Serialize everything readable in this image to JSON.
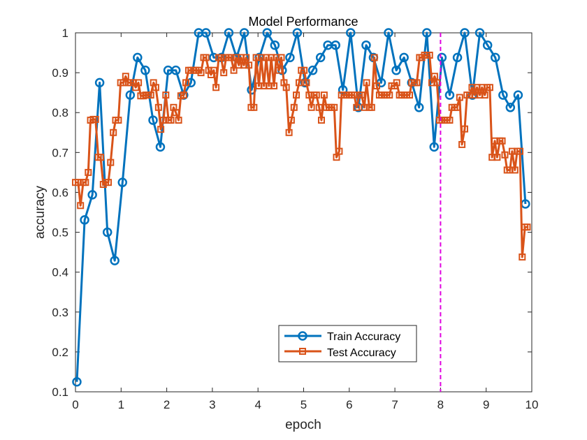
{
  "chart_data": {
    "type": "line",
    "title": "Model Performance",
    "xlabel": "epoch",
    "ylabel": "accuracy",
    "xlim": [
      0,
      10
    ],
    "ylim": [
      0.1,
      1
    ],
    "xticks": [
      "0",
      "1",
      "2",
      "3",
      "4",
      "5",
      "6",
      "7",
      "8",
      "9",
      "10"
    ],
    "yticks": [
      "0.1",
      "0.2",
      "0.3",
      "0.4",
      "0.5",
      "0.6",
      "0.7",
      "0.8",
      "0.9",
      "1"
    ],
    "grid": false,
    "legend_position": "bottom-center",
    "vline": {
      "x": 8,
      "color": "#e000e0",
      "style": "dashed"
    },
    "series": [
      {
        "name": "Train Accuracy",
        "color": "#0072bd",
        "marker": "circle",
        "points": [
          [
            0.03,
            0.125
          ],
          [
            0.2,
            0.531
          ],
          [
            0.37,
            0.594
          ],
          [
            0.53,
            0.875
          ],
          [
            0.7,
            0.5
          ],
          [
            0.86,
            0.429
          ],
          [
            1.03,
            0.625
          ],
          [
            1.2,
            0.844
          ],
          [
            1.36,
            0.938
          ],
          [
            1.53,
            0.906
          ],
          [
            1.7,
            0.781
          ],
          [
            1.86,
            0.714
          ],
          [
            2.03,
            0.906
          ],
          [
            2.2,
            0.906
          ],
          [
            2.37,
            0.844
          ],
          [
            2.53,
            0.875
          ],
          [
            2.7,
            1.0
          ],
          [
            2.86,
            1.0
          ],
          [
            3.03,
            0.938
          ],
          [
            3.2,
            0.938
          ],
          [
            3.36,
            1.0
          ],
          [
            3.53,
            0.938
          ],
          [
            3.7,
            1.0
          ],
          [
            3.86,
            0.857
          ],
          [
            4.03,
            0.938
          ],
          [
            4.2,
            1.0
          ],
          [
            4.37,
            0.969
          ],
          [
            4.53,
            0.906
          ],
          [
            4.7,
            0.938
          ],
          [
            4.86,
            1.0
          ],
          [
            5.03,
            0.875
          ],
          [
            5.2,
            0.906
          ],
          [
            5.37,
            0.938
          ],
          [
            5.53,
            0.969
          ],
          [
            5.7,
            0.969
          ],
          [
            5.86,
            0.857
          ],
          [
            6.03,
            1.0
          ],
          [
            6.2,
            0.813
          ],
          [
            6.37,
            0.969
          ],
          [
            6.53,
            0.938
          ],
          [
            6.7,
            0.875
          ],
          [
            6.86,
            1.0
          ],
          [
            7.03,
            0.906
          ],
          [
            7.2,
            0.938
          ],
          [
            7.37,
            0.875
          ],
          [
            7.53,
            0.813
          ],
          [
            7.7,
            1.0
          ],
          [
            7.86,
            0.714
          ],
          [
            8.03,
            0.938
          ],
          [
            8.2,
            0.844
          ],
          [
            8.37,
            0.938
          ],
          [
            8.53,
            1.0
          ],
          [
            8.7,
            0.844
          ],
          [
            8.86,
            1.0
          ],
          [
            9.03,
            0.969
          ],
          [
            9.2,
            0.938
          ],
          [
            9.37,
            0.844
          ],
          [
            9.53,
            0.813
          ],
          [
            9.7,
            0.844
          ],
          [
            9.86,
            0.571
          ]
        ]
      },
      {
        "name": "Test Accuracy",
        "color": "#d95319",
        "marker": "square",
        "points": [
          [
            0.0,
            0.625
          ],
          [
            0.06,
            0.625
          ],
          [
            0.11,
            0.567
          ],
          [
            0.17,
            0.625
          ],
          [
            0.22,
            0.625
          ],
          [
            0.28,
            0.65
          ],
          [
            0.33,
            0.781
          ],
          [
            0.39,
            0.783
          ],
          [
            0.44,
            0.783
          ],
          [
            0.5,
            0.688
          ],
          [
            0.55,
            0.688
          ],
          [
            0.61,
            0.62
          ],
          [
            0.66,
            0.625
          ],
          [
            0.72,
            0.625
          ],
          [
            0.77,
            0.675
          ],
          [
            0.83,
            0.75
          ],
          [
            0.88,
            0.781
          ],
          [
            0.94,
            0.781
          ],
          [
            0.99,
            0.875
          ],
          [
            1.05,
            0.875
          ],
          [
            1.1,
            0.891
          ],
          [
            1.16,
            0.875
          ],
          [
            1.21,
            0.875
          ],
          [
            1.27,
            0.875
          ],
          [
            1.32,
            0.863
          ],
          [
            1.38,
            0.875
          ],
          [
            1.43,
            0.842
          ],
          [
            1.49,
            0.842
          ],
          [
            1.54,
            0.844
          ],
          [
            1.6,
            0.844
          ],
          [
            1.65,
            0.844
          ],
          [
            1.71,
            0.875
          ],
          [
            1.76,
            0.863
          ],
          [
            1.82,
            0.813
          ],
          [
            1.87,
            0.758
          ],
          [
            1.93,
            0.781
          ],
          [
            1.98,
            0.844
          ],
          [
            2.04,
            0.781
          ],
          [
            2.09,
            0.781
          ],
          [
            2.15,
            0.813
          ],
          [
            2.2,
            0.8
          ],
          [
            2.26,
            0.781
          ],
          [
            2.31,
            0.842
          ],
          [
            2.37,
            0.844
          ],
          [
            2.42,
            0.875
          ],
          [
            2.48,
            0.906
          ],
          [
            2.53,
            0.906
          ],
          [
            2.59,
            0.906
          ],
          [
            2.64,
            0.906
          ],
          [
            2.7,
            0.906
          ],
          [
            2.75,
            0.9
          ],
          [
            2.81,
            0.938
          ],
          [
            2.86,
            0.938
          ],
          [
            2.92,
            0.906
          ],
          [
            2.97,
            0.895
          ],
          [
            3.03,
            0.906
          ],
          [
            3.08,
            0.863
          ],
          [
            3.14,
            0.938
          ],
          [
            3.19,
            0.938
          ],
          [
            3.25,
            0.9
          ],
          [
            3.3,
            0.938
          ],
          [
            3.36,
            0.938
          ],
          [
            3.41,
            0.938
          ],
          [
            3.47,
            0.906
          ],
          [
            3.52,
            0.938
          ],
          [
            3.58,
            0.919
          ],
          [
            3.63,
            0.938
          ],
          [
            3.69,
            0.919
          ],
          [
            3.74,
            0.938
          ],
          [
            3.8,
            0.919
          ],
          [
            3.85,
            0.813
          ],
          [
            3.91,
            0.813
          ],
          [
            3.96,
            0.938
          ],
          [
            4.02,
            0.867
          ],
          [
            4.07,
            0.938
          ],
          [
            4.13,
            0.867
          ],
          [
            4.18,
            0.938
          ],
          [
            4.24,
            0.867
          ],
          [
            4.29,
            0.938
          ],
          [
            4.35,
            0.867
          ],
          [
            4.4,
            0.938
          ],
          [
            4.46,
            0.906
          ],
          [
            4.51,
            0.938
          ],
          [
            4.57,
            0.875
          ],
          [
            4.62,
            0.863
          ],
          [
            4.68,
            0.75
          ],
          [
            4.73,
            0.781
          ],
          [
            4.79,
            0.813
          ],
          [
            4.84,
            0.844
          ],
          [
            4.9,
            0.875
          ],
          [
            4.95,
            0.906
          ],
          [
            5.01,
            0.906
          ],
          [
            5.06,
            0.875
          ],
          [
            5.12,
            0.844
          ],
          [
            5.17,
            0.813
          ],
          [
            5.23,
            0.844
          ],
          [
            5.28,
            0.844
          ],
          [
            5.34,
            0.813
          ],
          [
            5.39,
            0.781
          ],
          [
            5.45,
            0.844
          ],
          [
            5.5,
            0.813
          ],
          [
            5.56,
            0.813
          ],
          [
            5.61,
            0.813
          ],
          [
            5.67,
            0.813
          ],
          [
            5.72,
            0.688
          ],
          [
            5.78,
            0.703
          ],
          [
            5.83,
            0.844
          ],
          [
            5.89,
            0.844
          ],
          [
            5.94,
            0.844
          ],
          [
            6.0,
            0.844
          ],
          [
            6.05,
            0.844
          ],
          [
            6.11,
            0.844
          ],
          [
            6.16,
            0.813
          ],
          [
            6.22,
            0.844
          ],
          [
            6.27,
            0.844
          ],
          [
            6.33,
            0.813
          ],
          [
            6.38,
            0.875
          ],
          [
            6.44,
            0.813
          ],
          [
            6.49,
            0.813
          ],
          [
            6.55,
            0.938
          ],
          [
            6.6,
            0.867
          ],
          [
            6.66,
            0.844
          ],
          [
            6.71,
            0.844
          ],
          [
            6.77,
            0.844
          ],
          [
            6.82,
            0.844
          ],
          [
            6.88,
            0.844
          ],
          [
            6.93,
            0.867
          ],
          [
            6.99,
            0.867
          ],
          [
            7.04,
            0.875
          ],
          [
            7.1,
            0.844
          ],
          [
            7.15,
            0.844
          ],
          [
            7.21,
            0.844
          ],
          [
            7.26,
            0.844
          ],
          [
            7.32,
            0.844
          ],
          [
            7.37,
            0.875
          ],
          [
            7.43,
            0.875
          ],
          [
            7.48,
            0.875
          ],
          [
            7.54,
            0.938
          ],
          [
            7.59,
            0.938
          ],
          [
            7.65,
            0.944
          ],
          [
            7.7,
            0.944
          ],
          [
            7.76,
            0.944
          ],
          [
            7.81,
            0.875
          ],
          [
            7.87,
            0.891
          ],
          [
            7.92,
            0.875
          ],
          [
            7.98,
            0.781
          ],
          [
            8.03,
            0.781
          ],
          [
            8.09,
            0.781
          ],
          [
            8.14,
            0.781
          ],
          [
            8.2,
            0.781
          ],
          [
            8.25,
            0.813
          ],
          [
            8.31,
            0.813
          ],
          [
            8.36,
            0.813
          ],
          [
            8.42,
            0.838
          ],
          [
            8.47,
            0.72
          ],
          [
            8.53,
            0.759
          ],
          [
            8.58,
            0.844
          ],
          [
            8.64,
            0.844
          ],
          [
            8.69,
            0.863
          ],
          [
            8.75,
            0.844
          ],
          [
            8.8,
            0.863
          ],
          [
            8.86,
            0.844
          ],
          [
            8.91,
            0.863
          ],
          [
            8.97,
            0.844
          ],
          [
            9.02,
            0.863
          ],
          [
            9.08,
            0.863
          ],
          [
            9.13,
            0.688
          ],
          [
            9.19,
            0.729
          ],
          [
            9.24,
            0.688
          ],
          [
            9.3,
            0.729
          ],
          [
            9.35,
            0.729
          ],
          [
            9.41,
            0.694
          ],
          [
            9.46,
            0.656
          ],
          [
            9.52,
            0.656
          ],
          [
            9.57,
            0.703
          ],
          [
            9.63,
            0.656
          ],
          [
            9.68,
            0.703
          ],
          [
            9.74,
            0.703
          ],
          [
            9.79,
            0.438
          ],
          [
            9.85,
            0.513
          ],
          [
            9.9,
            0.513
          ]
        ]
      }
    ]
  }
}
